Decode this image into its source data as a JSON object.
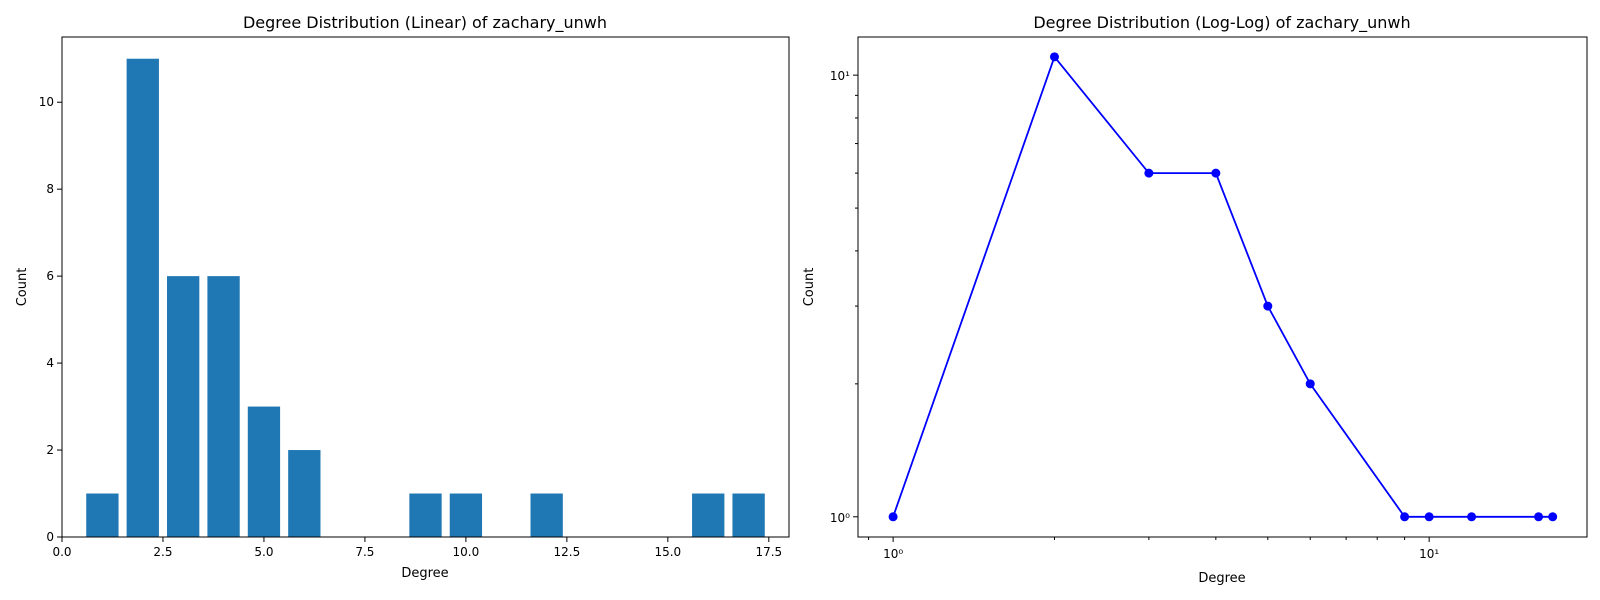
{
  "chart_data": [
    {
      "type": "bar",
      "title": "Degree Distribution (Linear) of zachary_unwh",
      "xlabel": "Degree",
      "ylabel": "Count",
      "x": [
        1,
        2,
        3,
        4,
        5,
        6,
        9,
        10,
        12,
        16,
        17
      ],
      "values": [
        1,
        11,
        6,
        6,
        3,
        2,
        1,
        1,
        1,
        1,
        1
      ],
      "bar_width": 0.8,
      "xlim": [
        0.0,
        18.0
      ],
      "ylim": [
        0,
        11.5
      ],
      "xticks": [
        0.0,
        2.5,
        5.0,
        7.5,
        10.0,
        12.5,
        15.0,
        17.5
      ],
      "xtick_labels": [
        "0.0",
        "2.5",
        "5.0",
        "7.5",
        "10.0",
        "12.5",
        "15.0",
        "17.5"
      ],
      "yticks": [
        0,
        2,
        4,
        6,
        8,
        10
      ],
      "ytick_labels": [
        "0",
        "2",
        "4",
        "6",
        "8",
        "10"
      ],
      "color": "#1f77b4",
      "grid": false
    },
    {
      "type": "line",
      "title": "Degree Distribution (Log-Log) of zachary_unwh",
      "xlabel": "Degree",
      "ylabel": "Count",
      "xscale": "log",
      "yscale": "log",
      "x": [
        1,
        2,
        3,
        4,
        5,
        6,
        9,
        10,
        12,
        16,
        17
      ],
      "y": [
        1,
        11,
        6,
        6,
        3,
        2,
        1,
        1,
        1,
        1,
        1
      ],
      "xlim": [
        0.86,
        19.7
      ],
      "ylim": [
        0.9,
        12.2
      ],
      "xticks_major": [
        1,
        10
      ],
      "xtick_labels": [
        "10⁰",
        "10¹"
      ],
      "yticks_major": [
        1,
        10
      ],
      "ytick_labels": [
        "10⁰",
        "10¹"
      ],
      "color": "#0000ff",
      "marker": "circle",
      "grid": false
    }
  ]
}
